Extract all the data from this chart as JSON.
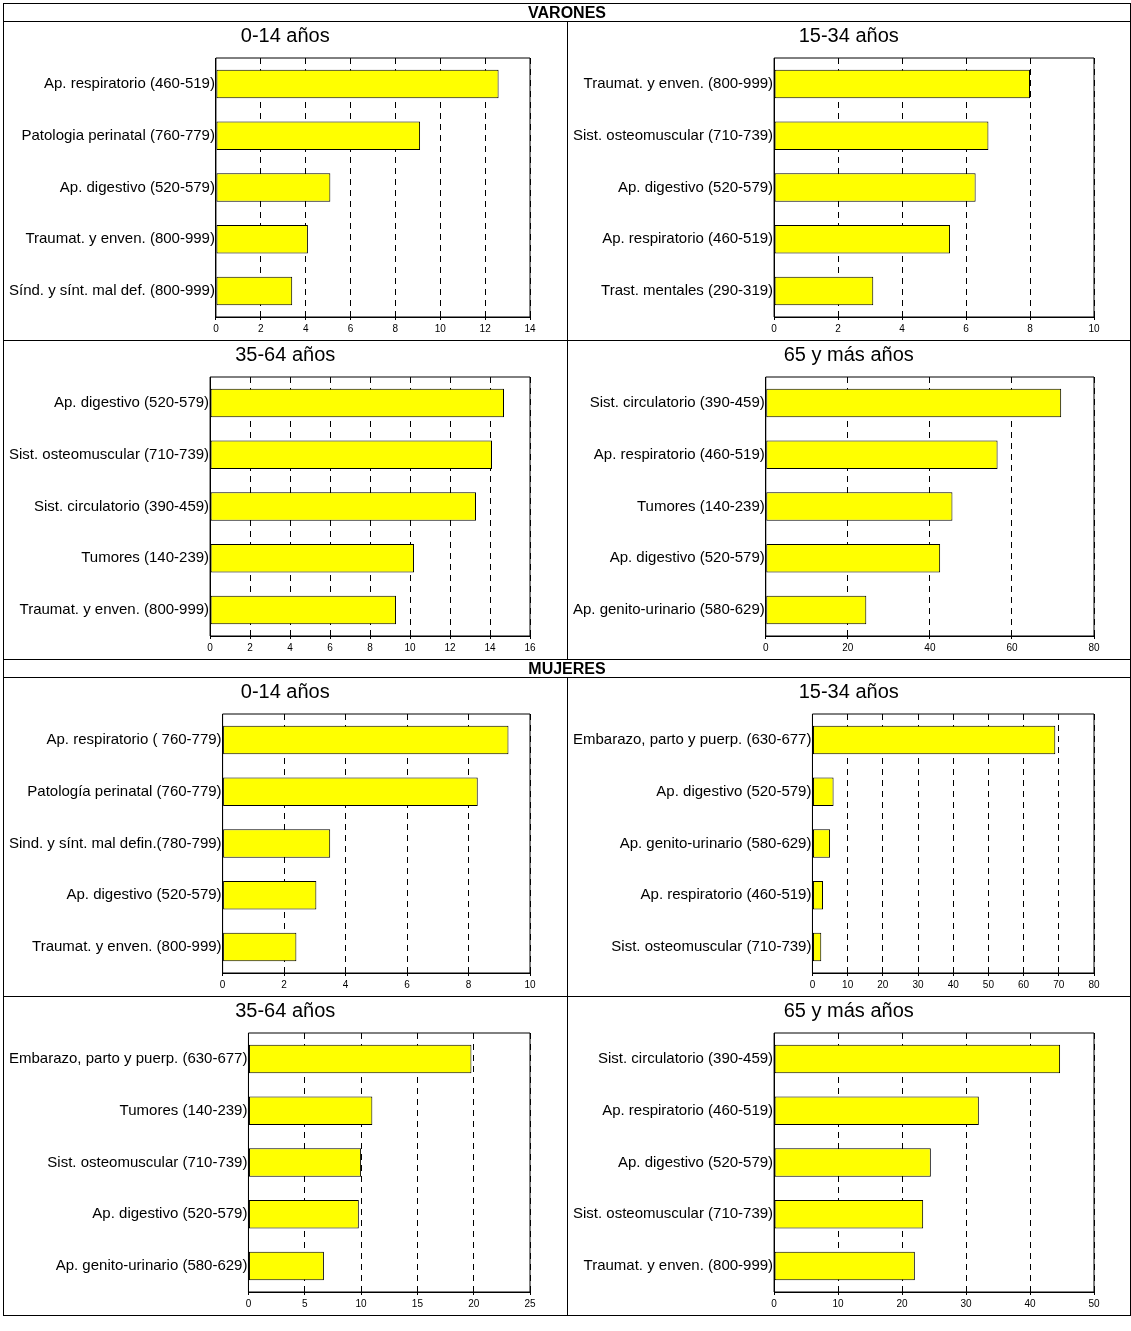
{
  "chart_data": [
    {
      "type": "bar",
      "orientation": "horizontal",
      "title": "0-14 años",
      "annotations": [
        "VARONES"
      ],
      "categories": [
        "Ap. respiratorio (460-519)",
        "Patologia perinatal (760-779)",
        "Ap. digestivo (520-579)",
        "Traumat. y enven. (800-999)",
        "Sínd. y sínt. mal def. (800-999)"
      ],
      "values": [
        12.6,
        9.1,
        5.1,
        4.1,
        3.4
      ],
      "color": "#ffff00",
      "xlim": [
        0,
        14
      ],
      "xticks": [
        0,
        2,
        4,
        6,
        8,
        10,
        12,
        14
      ],
      "grid": "x"
    },
    {
      "type": "bar",
      "orientation": "horizontal",
      "title": "15-34 años",
      "categories": [
        "Traumat. y enven. (800-999)",
        "Sist. osteomuscular (710-739)",
        "Ap. digestivo (520-579)",
        "Ap. respiratorio (460-519)",
        "Trast. mentales (290-319)"
      ],
      "values": [
        8.0,
        6.7,
        6.3,
        5.5,
        3.1
      ],
      "color": "#ffff00",
      "xlim": [
        0,
        10
      ],
      "xticks": [
        0,
        2,
        4,
        6,
        8,
        10
      ],
      "grid": "x"
    },
    {
      "type": "bar",
      "orientation": "horizontal",
      "title": "35-64 años",
      "categories": [
        "Ap. digestivo (520-579)",
        "Sist. osteomuscular (710-739)",
        "Sist. circulatorio (390-459)",
        "Tumores (140-239)",
        "Traumat. y enven. (800-999)"
      ],
      "values": [
        14.7,
        14.1,
        13.3,
        10.2,
        9.3
      ],
      "color": "#ffff00",
      "xlim": [
        0,
        16
      ],
      "xticks": [
        0,
        2,
        4,
        6,
        8,
        10,
        12,
        14,
        16
      ],
      "grid": "x"
    },
    {
      "type": "bar",
      "orientation": "horizontal",
      "title": "65 y más años",
      "categories": [
        "Sist. circulatorio (390-459)",
        "Ap. respiratorio (460-519)",
        "Tumores (140-239)",
        "Ap. digestivo (520-579)",
        "Ap. genito-urinario (580-629)"
      ],
      "values": [
        72,
        56.5,
        45.5,
        42.5,
        24.5
      ],
      "color": "#ffff00",
      "xlim": [
        0,
        80
      ],
      "xticks": [
        0,
        20,
        40,
        60,
        80
      ],
      "grid": "x"
    },
    {
      "type": "bar",
      "orientation": "horizontal",
      "title": "0-14 años",
      "annotations": [
        "MUJERES"
      ],
      "categories": [
        "Ap. respiratorio ( 760-779)",
        "Patología perinatal (760-779)",
        "Sind. y sínt. mal defin.(780-799)",
        "Ap. digestivo (520-579)",
        "Traumat. y enven. (800-999)"
      ],
      "values": [
        9.3,
        8.3,
        3.5,
        3.05,
        2.4
      ],
      "color": "#ffff00",
      "xlim": [
        0,
        10
      ],
      "xticks": [
        0,
        2,
        4,
        6,
        8,
        10
      ],
      "grid": "x"
    },
    {
      "type": "bar",
      "orientation": "horizontal",
      "title": "15-34 años",
      "categories": [
        "Embarazo, parto y puerp. (630-677)",
        "Ap. digestivo (520-579)",
        "Ap. genito-urinario (580-629)",
        "Ap. respiratorio (460-519)",
        "Sist. osteomuscular (710-739)"
      ],
      "values": [
        69,
        6,
        5,
        3,
        2.5
      ],
      "color": "#ffff00",
      "xlim": [
        0,
        80
      ],
      "xticks": [
        0,
        10,
        20,
        30,
        40,
        50,
        60,
        70,
        80
      ],
      "grid": "x"
    },
    {
      "type": "bar",
      "orientation": "horizontal",
      "title": "35-64 años",
      "categories": [
        "Embarazo, parto y puerp. (630-677)",
        "Tumores (140-239)",
        "Sist. osteomuscular (710-739)",
        "Ap. digestivo (520-579)",
        "Ap. genito-urinario (580-629)"
      ],
      "values": [
        19.8,
        11,
        10,
        9.8,
        6.7
      ],
      "color": "#ffff00",
      "xlim": [
        0,
        25
      ],
      "xticks": [
        0,
        5,
        10,
        15,
        20,
        25
      ],
      "grid": "x"
    },
    {
      "type": "bar",
      "orientation": "horizontal",
      "title": "65 y más años",
      "categories": [
        "Sist. circulatorio (390-459)",
        "Ap. respiratorio (460-519)",
        "Ap. digestivo (520-579)",
        "Sist. osteomuscular (710-739)",
        "Traumat. y enven. (800-999)"
      ],
      "values": [
        44.7,
        32,
        24.5,
        23.3,
        22
      ],
      "color": "#ffff00",
      "xlim": [
        0,
        50
      ],
      "xticks": [
        0,
        10,
        20,
        30,
        40,
        50
      ],
      "grid": "x"
    }
  ]
}
